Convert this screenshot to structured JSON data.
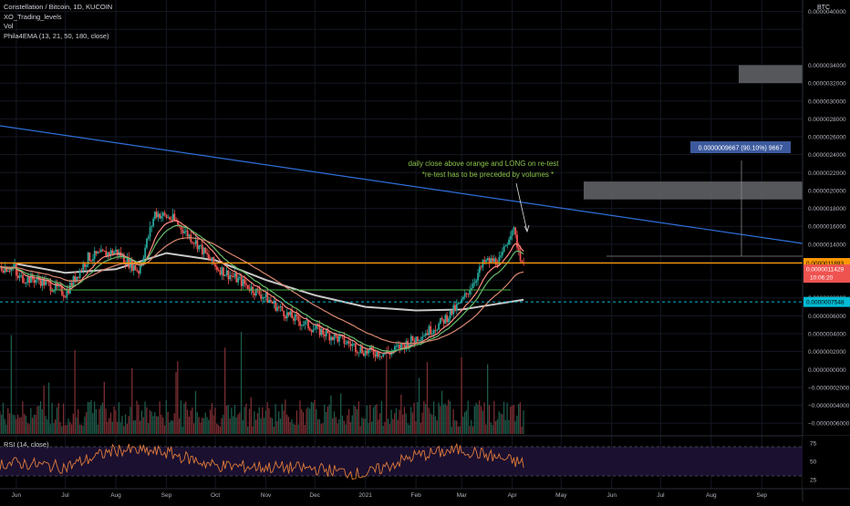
{
  "header": {
    "symbol_line": "Constellation / Bitcoin, 1D, KUCOIN",
    "indicator_1": "XO_Trading_levels",
    "indicator_2": "Vol",
    "indicator_3": "Phila4EMA (13, 21, 50, 180, close)",
    "currency_tag": "BTC",
    "rsi_label": "RSI (14, close)"
  },
  "colors": {
    "background": "#000000",
    "grid": "#141823",
    "candle_up": "#26a69a",
    "candle_down": "#ef5350",
    "trendline": "#2e6fd8",
    "orange_level": "#ff9800",
    "ema13": "#ff8a80",
    "ema21": "#66bb6a",
    "ema50": "#d98870",
    "ema180": "#c8c8c8",
    "rsi_line": "#e07b39",
    "rsi_band": "#1b1030"
  },
  "chart_data": [
    {
      "type": "line",
      "title": "Constellation / Bitcoin, 1D, KUCOIN",
      "y_unit": "BTC",
      "ylim": [
        -7e-07,
        4.1e-06
      ],
      "x_tick_labels": [
        "Jun",
        "Jul",
        "Aug",
        "Sep",
        "Oct",
        "Nov",
        "Dec",
        "2021",
        "Feb",
        "Mar",
        "Apr",
        "May",
        "Jun",
        "Jul",
        "Aug",
        "Sep"
      ],
      "y_tick_labels": [
        "0.0000040000",
        "0.0000034000",
        "0.0000032000",
        "0.0000030000",
        "0.0000028000",
        "0.0000026000",
        "0.0000024000",
        "0.0000022000",
        "0.0000020000",
        "0.0000018000",
        "0.0000016000",
        "0.0000014000",
        "0.0000010000",
        "0.0000008000",
        "0.0000006000",
        "0.0000004000",
        "0.0000002000",
        "0.0000000000",
        "−0.0000002000",
        "−0.0000004000",
        "−0.0000006000"
      ],
      "series": [
        {
          "kind": "price",
          "x": [
            "2020-06-01",
            "2020-06-15",
            "2020-07-01",
            "2020-07-15",
            "2020-08-01",
            "2020-08-15",
            "2020-08-25",
            "2020-09-05",
            "2020-09-20",
            "2020-10-01",
            "2020-10-15",
            "2020-11-01",
            "2020-11-15",
            "2020-12-01",
            "2020-12-15",
            "2021-01-01",
            "2021-01-15",
            "2021-02-01",
            "2021-02-15",
            "2021-03-01",
            "2021-03-15",
            "2021-03-25",
            "2021-04-01",
            "2021-04-08"
          ],
          "y": [
            1.03e-06,
            1e-06,
            8.5e-07,
            1.25e-06,
            1.32e-06,
            1.1e-06,
            1.75e-06,
            1.68e-06,
            1.4e-06,
            1.15e-06,
            1e-06,
            8e-07,
            6e-07,
            4.5e-07,
            3.5e-07,
            2e-07,
            1.8e-07,
            3.5e-07,
            5e-07,
            7.5e-07,
            1.2e-06,
            1.22e-06,
            1.6e-06,
            1.14e-06
          ]
        },
        {
          "kind": "ema180",
          "x": [
            "2020-06-01",
            "2020-07-01",
            "2020-08-01",
            "2020-09-01",
            "2020-10-01",
            "2020-11-01",
            "2020-12-01",
            "2021-01-01",
            "2021-02-01",
            "2021-03-01",
            "2021-04-08"
          ],
          "y": [
            1.18e-06,
            1.08e-06,
            1.12e-06,
            1.3e-06,
            1.22e-06,
            1e-06,
            8.3e-07,
            7e-07,
            6.6e-07,
            6.7e-07,
            7.8e-07
          ]
        }
      ],
      "levels": [
        {
          "label": "0.0000011893",
          "value": 1.1893e-06,
          "color": "#ff9800"
        },
        {
          "label": "0.0000011429",
          "value": 1.1429e-06,
          "color": "#ef5350"
        },
        {
          "label": "0.0000007548",
          "value": 7.548e-07,
          "color": "#00bcd4"
        }
      ],
      "countdown_label": "10:06:20",
      "annotation": {
        "line1": "daily close above orange and LONG on re-test",
        "line2": "*re-test has to be preceded by volumes *"
      },
      "measure_label": "0.0000009667 (90.10%) 9667",
      "zones": [
        {
          "from": 3.2e-06,
          "to": 3.4e-06
        },
        {
          "from": 1.9e-06,
          "to": 2.1e-06
        }
      ],
      "grid": true
    },
    {
      "type": "line",
      "title": "RSI (14, close)",
      "y_tick_labels": [
        "75",
        "50",
        "25"
      ],
      "ylim": [
        20,
        80
      ],
      "bands": [
        30,
        70
      ],
      "x": [
        "2020-06-01",
        "2020-07-01",
        "2020-08-01",
        "2020-09-01",
        "2020-10-01",
        "2020-11-01",
        "2020-12-01",
        "2021-01-01",
        "2021-02-01",
        "2021-03-01",
        "2021-04-08"
      ],
      "y": [
        48,
        42,
        66,
        62,
        44,
        42,
        40,
        32,
        58,
        66,
        47
      ]
    }
  ]
}
